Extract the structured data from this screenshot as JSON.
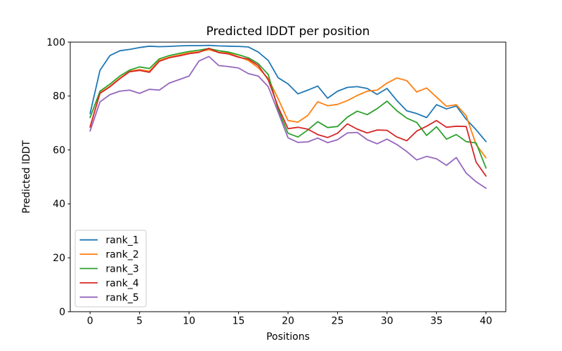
{
  "figure": {
    "background": "#ffffff"
  },
  "chart_data": {
    "type": "line",
    "title": "Predicted lDDT per position",
    "xlabel": "Positions",
    "ylabel": "Predicted lDDT",
    "xlim": [
      -2,
      42
    ],
    "ylim": [
      0,
      100
    ],
    "xticks": [
      0,
      5,
      10,
      15,
      20,
      25,
      30,
      35,
      40
    ],
    "yticks": [
      0,
      20,
      40,
      60,
      80,
      100
    ],
    "grid": false,
    "legend_position": "lower left",
    "x": [
      0,
      1,
      2,
      3,
      4,
      5,
      6,
      7,
      8,
      9,
      10,
      11,
      12,
      13,
      14,
      15,
      16,
      17,
      18,
      19,
      20,
      21,
      22,
      23,
      24,
      25,
      26,
      27,
      28,
      29,
      30,
      31,
      32,
      33,
      34,
      35,
      36,
      37,
      38,
      39,
      40
    ],
    "series": [
      {
        "name": "rank_1",
        "color": "#1f77b4",
        "values": [
          73.5,
          89.5,
          95.0,
          96.8,
          97.3,
          98.0,
          98.5,
          98.3,
          98.4,
          98.6,
          98.7,
          98.7,
          98.8,
          98.6,
          98.5,
          98.4,
          98.2,
          96.3,
          93.2,
          86.8,
          84.5,
          80.8,
          82.2,
          83.7,
          79.2,
          81.8,
          83.2,
          83.5,
          82.8,
          80.6,
          82.8,
          78.3,
          74.5,
          73.5,
          72.0,
          76.8,
          75.2,
          76.3,
          71.4,
          67.5,
          63.1
        ]
      },
      {
        "name": "rank_2",
        "color": "#ff7f0e",
        "values": [
          68.5,
          81.2,
          83.6,
          86.6,
          89.2,
          89.8,
          89.2,
          93.2,
          94.4,
          95.2,
          96.0,
          96.4,
          97.2,
          96.2,
          95.9,
          94.6,
          93.2,
          90.5,
          86.5,
          79.0,
          70.9,
          70.3,
          72.8,
          77.9,
          76.4,
          76.9,
          78.3,
          80.2,
          81.8,
          82.2,
          84.8,
          86.7,
          85.7,
          81.5,
          83.0,
          79.6,
          76.2,
          76.8,
          72.7,
          62.0,
          57.1
        ]
      },
      {
        "name": "rank_3",
        "color": "#2ca02c",
        "values": [
          72.0,
          81.8,
          84.4,
          87.4,
          89.6,
          90.8,
          90.2,
          93.8,
          95.0,
          95.8,
          96.5,
          97.0,
          97.6,
          96.8,
          96.3,
          95.3,
          94.2,
          92.0,
          88.0,
          75.0,
          66.2,
          64.8,
          67.4,
          70.5,
          68.3,
          68.7,
          72.2,
          74.4,
          73.1,
          75.3,
          78.1,
          74.5,
          71.8,
          70.2,
          65.4,
          68.6,
          64.0,
          65.7,
          63.1,
          62.6,
          53.3
        ]
      },
      {
        "name": "rank_4",
        "color": "#d62728",
        "values": [
          68.5,
          81.0,
          83.4,
          86.4,
          89.0,
          89.5,
          88.8,
          92.9,
          94.2,
          94.9,
          95.7,
          96.2,
          97.7,
          96.1,
          95.6,
          94.4,
          93.7,
          91.3,
          86.0,
          76.0,
          67.9,
          68.4,
          67.7,
          65.7,
          64.6,
          66.2,
          69.7,
          67.7,
          66.3,
          67.4,
          67.3,
          64.8,
          63.4,
          67.0,
          68.8,
          70.9,
          68.4,
          68.8,
          68.7,
          55.5,
          50.3
        ]
      },
      {
        "name": "rank_5",
        "color": "#9467bd",
        "values": [
          67.0,
          77.8,
          80.5,
          81.8,
          82.2,
          81.0,
          82.5,
          82.2,
          84.8,
          86.1,
          87.4,
          93.0,
          94.7,
          91.3,
          90.9,
          90.4,
          88.3,
          87.4,
          83.5,
          74.0,
          64.5,
          62.8,
          63.0,
          64.4,
          62.7,
          63.8,
          66.3,
          66.5,
          63.8,
          62.3,
          64.0,
          62.0,
          59.4,
          56.3,
          57.6,
          56.7,
          54.3,
          57.2,
          51.4,
          48.2,
          45.8
        ]
      }
    ]
  }
}
